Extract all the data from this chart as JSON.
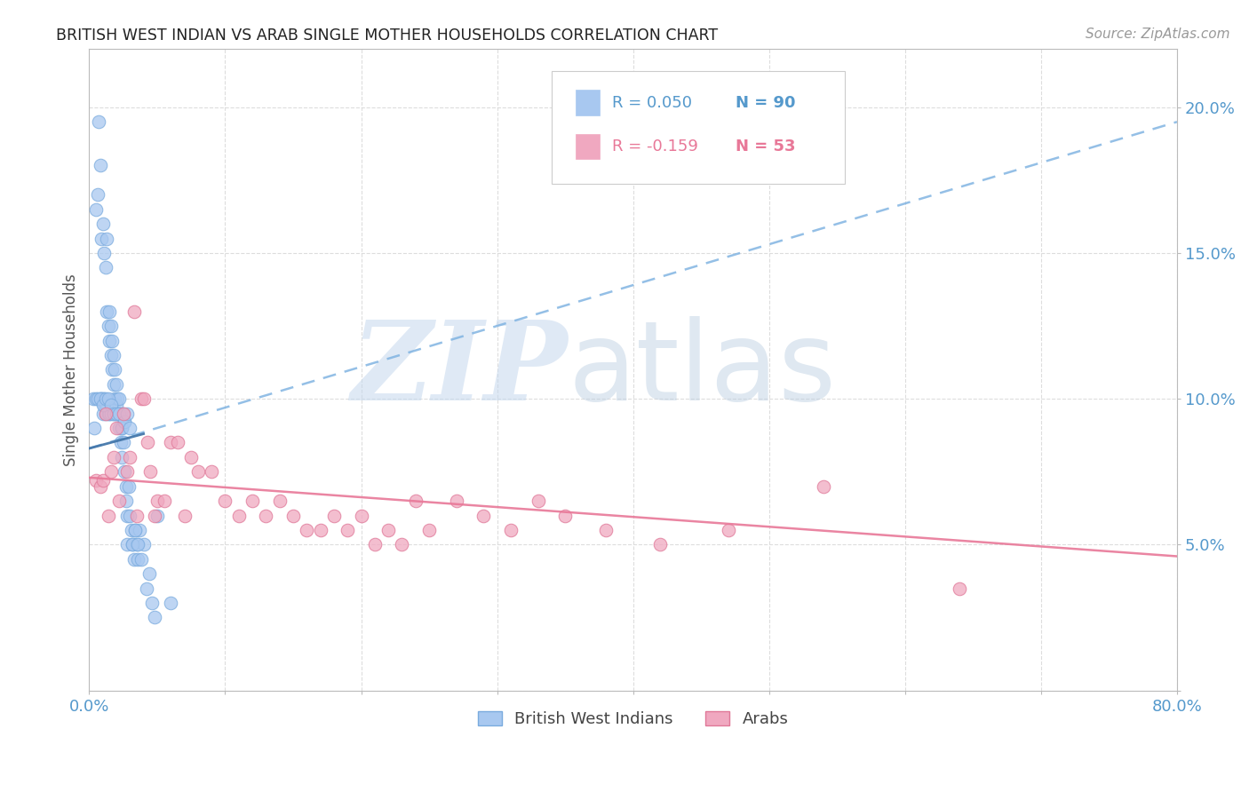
{
  "title": "BRITISH WEST INDIAN VS ARAB SINGLE MOTHER HOUSEHOLDS CORRELATION CHART",
  "source": "Source: ZipAtlas.com",
  "ylabel": "Single Mother Households",
  "watermark_zip": "ZIP",
  "watermark_atlas": "atlas",
  "xlim": [
    0.0,
    0.8
  ],
  "ylim": [
    0.0,
    0.22
  ],
  "ytick_vals": [
    0.0,
    0.05,
    0.1,
    0.15,
    0.2
  ],
  "ytick_labels": [
    "",
    "5.0%",
    "10.0%",
    "15.0%",
    "20.0%"
  ],
  "xtick_vals": [
    0.0,
    0.1,
    0.2,
    0.3,
    0.4,
    0.5,
    0.6,
    0.7,
    0.8
  ],
  "xtick_labels": [
    "0.0%",
    "",
    "",
    "",
    "",
    "",
    "",
    "",
    "80.0%"
  ],
  "legend_r1": "R = 0.050",
  "legend_n1": "N = 90",
  "legend_r2": "R = -0.159",
  "legend_n2": "N = 53",
  "blue_color": "#a8c8f0",
  "blue_edge_color": "#7aabde",
  "blue_line_color": "#7ab0e0",
  "pink_color": "#f0a8c0",
  "pink_edge_color": "#e07898",
  "pink_line_color": "#e87898",
  "axis_color": "#bbbbbb",
  "grid_color": "#dddddd",
  "blue_tick_color": "#5599cc",
  "blue_scatter_x": [
    0.003,
    0.004,
    0.005,
    0.005,
    0.006,
    0.007,
    0.008,
    0.008,
    0.009,
    0.009,
    0.01,
    0.01,
    0.01,
    0.011,
    0.011,
    0.011,
    0.012,
    0.012,
    0.012,
    0.013,
    0.013,
    0.013,
    0.014,
    0.014,
    0.015,
    0.015,
    0.015,
    0.016,
    0.016,
    0.016,
    0.017,
    0.017,
    0.018,
    0.018,
    0.018,
    0.019,
    0.019,
    0.02,
    0.02,
    0.02,
    0.021,
    0.021,
    0.022,
    0.022,
    0.022,
    0.023,
    0.023,
    0.024,
    0.024,
    0.025,
    0.025,
    0.026,
    0.026,
    0.027,
    0.027,
    0.028,
    0.028,
    0.029,
    0.03,
    0.031,
    0.032,
    0.033,
    0.034,
    0.035,
    0.036,
    0.037,
    0.038,
    0.04,
    0.042,
    0.044,
    0.046,
    0.048,
    0.05,
    0.006,
    0.008,
    0.01,
    0.012,
    0.014,
    0.016,
    0.018,
    0.02,
    0.022,
    0.024,
    0.026,
    0.028,
    0.03,
    0.032,
    0.034,
    0.036,
    0.06
  ],
  "blue_scatter_y": [
    0.1,
    0.09,
    0.165,
    0.1,
    0.17,
    0.195,
    0.18,
    0.1,
    0.155,
    0.1,
    0.16,
    0.1,
    0.095,
    0.15,
    0.1,
    0.098,
    0.145,
    0.095,
    0.098,
    0.155,
    0.13,
    0.098,
    0.125,
    0.095,
    0.13,
    0.12,
    0.095,
    0.115,
    0.125,
    0.095,
    0.11,
    0.12,
    0.105,
    0.115,
    0.095,
    0.1,
    0.11,
    0.105,
    0.095,
    0.098,
    0.1,
    0.095,
    0.09,
    0.1,
    0.095,
    0.085,
    0.095,
    0.08,
    0.09,
    0.085,
    0.095,
    0.075,
    0.092,
    0.07,
    0.065,
    0.06,
    0.05,
    0.07,
    0.06,
    0.055,
    0.05,
    0.045,
    0.055,
    0.05,
    0.045,
    0.055,
    0.045,
    0.05,
    0.035,
    0.04,
    0.03,
    0.025,
    0.06,
    0.1,
    0.1,
    0.098,
    0.1,
    0.1,
    0.098,
    0.095,
    0.095,
    0.095,
    0.09,
    0.092,
    0.095,
    0.09,
    0.05,
    0.055,
    0.05,
    0.03
  ],
  "pink_scatter_x": [
    0.005,
    0.008,
    0.01,
    0.012,
    0.014,
    0.016,
    0.018,
    0.02,
    0.022,
    0.025,
    0.028,
    0.03,
    0.033,
    0.035,
    0.038,
    0.04,
    0.043,
    0.045,
    0.048,
    0.05,
    0.055,
    0.06,
    0.065,
    0.07,
    0.075,
    0.08,
    0.09,
    0.1,
    0.11,
    0.12,
    0.13,
    0.14,
    0.15,
    0.16,
    0.17,
    0.18,
    0.19,
    0.2,
    0.21,
    0.22,
    0.23,
    0.24,
    0.25,
    0.27,
    0.29,
    0.31,
    0.33,
    0.35,
    0.38,
    0.42,
    0.47,
    0.54,
    0.64
  ],
  "pink_scatter_y": [
    0.072,
    0.07,
    0.072,
    0.095,
    0.06,
    0.075,
    0.08,
    0.09,
    0.065,
    0.095,
    0.075,
    0.08,
    0.13,
    0.06,
    0.1,
    0.1,
    0.085,
    0.075,
    0.06,
    0.065,
    0.065,
    0.085,
    0.085,
    0.06,
    0.08,
    0.075,
    0.075,
    0.065,
    0.06,
    0.065,
    0.06,
    0.065,
    0.06,
    0.055,
    0.055,
    0.06,
    0.055,
    0.06,
    0.05,
    0.055,
    0.05,
    0.065,
    0.055,
    0.065,
    0.06,
    0.055,
    0.065,
    0.06,
    0.055,
    0.05,
    0.055,
    0.07,
    0.035
  ],
  "blue_trend_x": [
    0.0,
    0.8
  ],
  "blue_trend_y": [
    0.083,
    0.195
  ],
  "pink_trend_x": [
    0.0,
    0.8
  ],
  "pink_trend_y": [
    0.073,
    0.046
  ]
}
